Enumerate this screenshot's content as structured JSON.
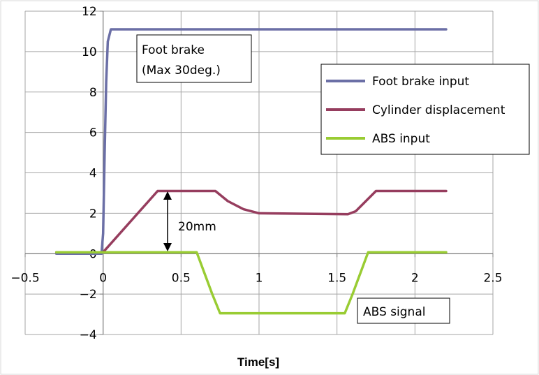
{
  "chart_data": {
    "type": "line",
    "title": "",
    "xlabel": "Time[s]",
    "ylabel": "",
    "xlim": [
      -0.5,
      2.5
    ],
    "ylim": [
      -4,
      12
    ],
    "x_ticks": [
      -0.5,
      0,
      0.5,
      1,
      1.5,
      2,
      2.5
    ],
    "x_tick_labels": [
      "−0.5",
      "0",
      "0.5",
      "1",
      "1.5",
      "2",
      "2.5"
    ],
    "y_ticks": [
      -4,
      -2,
      0,
      2,
      4,
      6,
      8,
      10,
      12
    ],
    "y_tick_labels": [
      "−4",
      "−2",
      "0",
      "2",
      "4",
      "6",
      "8",
      "10",
      "12"
    ],
    "grid": true,
    "legend_position": "right",
    "series": [
      {
        "name": "Foot brake input",
        "color": "#6b6fa6",
        "x": [
          -0.3,
          -0.01,
          0.0,
          0.01,
          0.02,
          0.03,
          0.05,
          0.1,
          2.2
        ],
        "y": [
          0,
          0,
          1.0,
          5.0,
          8.5,
          10.5,
          11.1,
          11.1,
          11.1
        ]
      },
      {
        "name": "Cylinder displacement",
        "color": "#963d5e",
        "x": [
          -0.3,
          0.0,
          0.35,
          0.72,
          0.8,
          0.9,
          1.0,
          1.57,
          1.62,
          1.75,
          2.2
        ],
        "y": [
          0.07,
          0.07,
          3.1,
          3.1,
          2.6,
          2.2,
          2.0,
          1.95,
          2.1,
          3.1,
          3.1
        ]
      },
      {
        "name": "ABS input",
        "color": "#99cc33",
        "x": [
          -0.3,
          0.6,
          0.7,
          0.75,
          1.55,
          1.6,
          1.7,
          2.2
        ],
        "y": [
          0.07,
          0.07,
          -2.0,
          -2.95,
          -2.95,
          -2.0,
          0.07,
          0.07
        ]
      }
    ],
    "annotations": {
      "foot_brake": [
        "Foot brake",
        "(Max 30deg.)"
      ],
      "displacement": "20mm",
      "abs_signal": "ABS signal"
    }
  }
}
